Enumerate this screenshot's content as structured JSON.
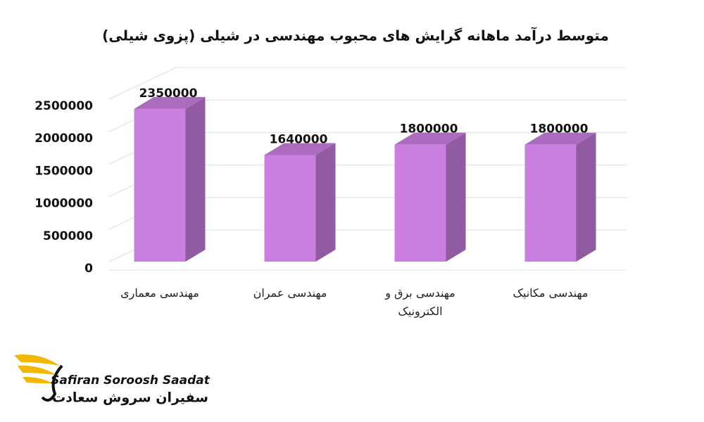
{
  "chart_data": {
    "type": "bar3d",
    "title": "متوسط درآمد ماهانه گرایش های محبوب مهندسی در شیلی (پزوی شیلی)",
    "categories": [
      "مهندسی معماری",
      "مهندسی عمران",
      "مهندسی برق و الکترونیک",
      "مهندسی مکانیک"
    ],
    "values": [
      2350000,
      1640000,
      1800000,
      1800000
    ],
    "color": "#c97ee0",
    "ylim": [
      0,
      2500000
    ],
    "yticks": [
      0,
      500000,
      1000000,
      1500000,
      2000000,
      2500000
    ],
    "grid": true
  },
  "logo": {
    "latin": "Safiran Soroosh Saadat",
    "persian": "سفیران سروش سعادت"
  }
}
